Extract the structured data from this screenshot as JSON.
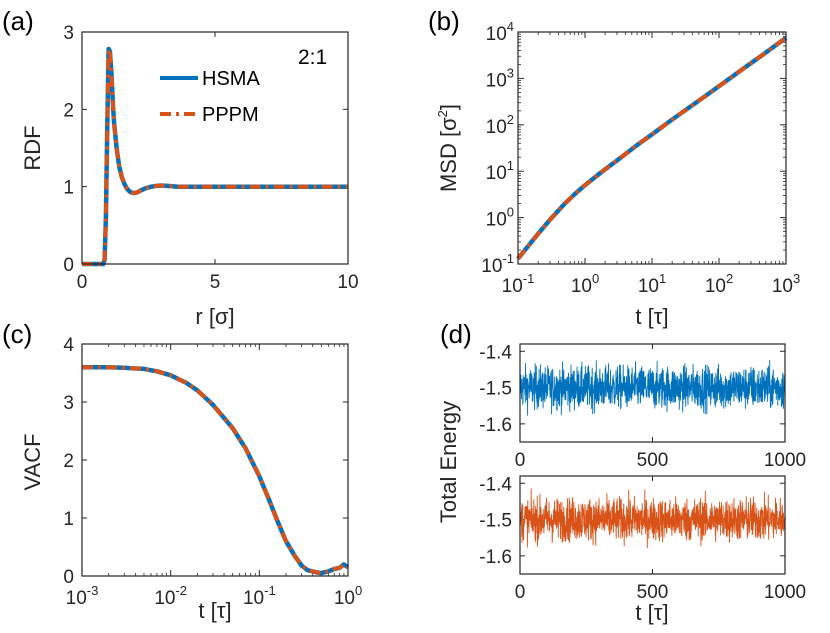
{
  "colors": {
    "hsma": "#0072BD",
    "pppm": "#D95319",
    "axis": "#262626"
  },
  "chart_data": [
    {
      "id": "a",
      "type": "line",
      "panel_label": "(a)",
      "annotation": "2:1",
      "xlabel": "r [σ]",
      "ylabel": "RDF",
      "xlim": [
        0,
        10
      ],
      "ylim": [
        0,
        3
      ],
      "xticks": [
        0,
        5,
        10
      ],
      "yticks": [
        0,
        1,
        2,
        3
      ],
      "legend": [
        "HSMA",
        "PPPM"
      ],
      "series": [
        {
          "name": "HSMA",
          "x": [
            0,
            0.8,
            0.85,
            0.9,
            0.95,
            1.0,
            1.05,
            1.1,
            1.15,
            1.2,
            1.3,
            1.4,
            1.5,
            1.6,
            1.7,
            1.8,
            1.9,
            2.0,
            2.1,
            2.2,
            2.4,
            2.6,
            2.8,
            3.0,
            3.2,
            3.4,
            3.6,
            3.8,
            4.0,
            4.5,
            5.0,
            6.0,
            7.0,
            8.0,
            9.0,
            10.0
          ],
          "y": [
            0,
            0,
            0.05,
            0.6,
            1.8,
            2.78,
            2.75,
            2.5,
            2.15,
            1.85,
            1.5,
            1.26,
            1.12,
            1.03,
            0.97,
            0.935,
            0.92,
            0.92,
            0.93,
            0.95,
            0.98,
            1.0,
            1.01,
            1.015,
            1.01,
            1.005,
            1.0,
            0.998,
            0.998,
            0.999,
            1.0,
            1.0,
            1.0,
            1.0,
            1.0,
            1.0
          ]
        },
        {
          "name": "PPPM",
          "x": [
            0,
            0.8,
            0.85,
            0.9,
            0.95,
            1.0,
            1.05,
            1.1,
            1.15,
            1.2,
            1.3,
            1.4,
            1.5,
            1.6,
            1.7,
            1.8,
            1.9,
            2.0,
            2.1,
            2.2,
            2.4,
            2.6,
            2.8,
            3.0,
            3.2,
            3.4,
            3.6,
            3.8,
            4.0,
            4.5,
            5.0,
            6.0,
            7.0,
            8.0,
            9.0,
            10.0
          ],
          "y": [
            0,
            0,
            0.05,
            0.6,
            1.8,
            2.78,
            2.75,
            2.5,
            2.15,
            1.85,
            1.5,
            1.26,
            1.12,
            1.03,
            0.97,
            0.935,
            0.92,
            0.92,
            0.93,
            0.95,
            0.98,
            1.0,
            1.01,
            1.015,
            1.01,
            1.005,
            1.0,
            0.998,
            0.998,
            0.999,
            1.0,
            1.0,
            1.0,
            1.0,
            1.0,
            1.0
          ]
        }
      ]
    },
    {
      "id": "b",
      "type": "line",
      "panel_label": "(b)",
      "xlabel": "t [τ]",
      "ylabel": "MSD [σ2]",
      "ylabel_base": "MSD [σ",
      "ylabel_exp": "2",
      "ylabel_close": "]",
      "xscale": "log",
      "yscale": "log",
      "xlim": [
        0.1,
        1000
      ],
      "ylim": [
        0.1,
        10000
      ],
      "xtick_exponents": [
        -1,
        0,
        1,
        2,
        3
      ],
      "ytick_exponents": [
        -1,
        0,
        1,
        2,
        3,
        4
      ],
      "series": [
        {
          "name": "HSMA",
          "x": [
            0.1,
            0.15,
            0.2,
            0.3,
            0.5,
            0.7,
            1,
            1.5,
            2,
            3,
            5,
            7,
            10,
            20,
            50,
            100,
            200,
            500,
            1000
          ],
          "y": [
            0.13,
            0.27,
            0.45,
            0.9,
            2.0,
            3.2,
            5.0,
            8.0,
            11,
            17,
            30,
            43,
            62,
            130,
            330,
            680,
            1400,
            3600,
            7500
          ]
        },
        {
          "name": "PPPM",
          "x": [
            0.1,
            0.15,
            0.2,
            0.3,
            0.5,
            0.7,
            1,
            1.5,
            2,
            3,
            5,
            7,
            10,
            20,
            50,
            100,
            200,
            500,
            1000
          ],
          "y": [
            0.13,
            0.27,
            0.45,
            0.9,
            2.0,
            3.2,
            5.0,
            8.0,
            11,
            17,
            30,
            43,
            62,
            130,
            330,
            680,
            1400,
            3600,
            7500
          ]
        }
      ]
    },
    {
      "id": "c",
      "type": "line",
      "panel_label": "(c)",
      "xlabel": "t [τ]",
      "ylabel": "VACF",
      "xscale": "log",
      "xlim": [
        0.001,
        1
      ],
      "ylim": [
        0,
        4
      ],
      "xtick_exponents": [
        -3,
        -2,
        -1,
        0
      ],
      "yticks": [
        0,
        1,
        2,
        3,
        4
      ],
      "series": [
        {
          "name": "HSMA",
          "x": [
            0.001,
            0.002,
            0.003,
            0.005,
            0.007,
            0.01,
            0.015,
            0.02,
            0.03,
            0.05,
            0.07,
            0.1,
            0.13,
            0.16,
            0.2,
            0.25,
            0.3,
            0.35,
            0.4,
            0.45,
            0.5,
            0.6,
            0.7,
            0.8,
            0.9,
            1.0
          ],
          "y": [
            3.6,
            3.6,
            3.59,
            3.57,
            3.53,
            3.46,
            3.33,
            3.2,
            2.95,
            2.55,
            2.2,
            1.72,
            1.3,
            0.95,
            0.6,
            0.35,
            0.18,
            0.1,
            0.08,
            0.06,
            0.05,
            0.08,
            0.12,
            0.14,
            0.2,
            0.15
          ]
        },
        {
          "name": "PPPM",
          "x": [
            0.001,
            0.002,
            0.003,
            0.005,
            0.007,
            0.01,
            0.015,
            0.02,
            0.03,
            0.05,
            0.07,
            0.1,
            0.13,
            0.16,
            0.2,
            0.25,
            0.3,
            0.35,
            0.4,
            0.45,
            0.5,
            0.6,
            0.7,
            0.8,
            0.9,
            1.0
          ],
          "y": [
            3.6,
            3.6,
            3.59,
            3.57,
            3.53,
            3.46,
            3.33,
            3.2,
            2.95,
            2.55,
            2.2,
            1.72,
            1.3,
            0.95,
            0.6,
            0.35,
            0.18,
            0.1,
            0.08,
            0.06,
            0.05,
            0.08,
            0.12,
            0.14,
            0.2,
            0.15
          ]
        }
      ]
    },
    {
      "id": "d",
      "type": "line",
      "panel_label": "(d)",
      "ylabel": "Total Energy",
      "xlabel": "t [τ]",
      "subplots": [
        {
          "name": "HSMA",
          "xlim": [
            0,
            1000
          ],
          "ylim": [
            -1.65,
            -1.38
          ],
          "xticks": [
            0,
            500,
            1000
          ],
          "yticks": [
            -1.4,
            -1.5,
            -1.6
          ],
          "ytick_labels": [
            "-1.4",
            "-1.5",
            "-1.6"
          ],
          "mean": -1.5,
          "band_low": -1.585,
          "band_high": -1.41,
          "samples": 1400
        },
        {
          "name": "PPPM",
          "xlim": [
            0,
            1000
          ],
          "ylim": [
            -1.65,
            -1.38
          ],
          "xticks": [
            0,
            500,
            1000
          ],
          "yticks": [
            -1.4,
            -1.5,
            -1.6
          ],
          "ytick_labels": [
            "-1.4",
            "-1.5",
            "-1.6"
          ],
          "mean": -1.5,
          "band_low": -1.585,
          "band_high": -1.41,
          "samples": 1400
        }
      ]
    }
  ]
}
